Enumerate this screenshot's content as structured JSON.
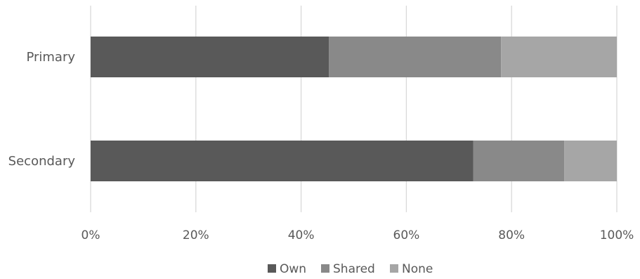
{
  "chart_data": {
    "type": "bar",
    "orientation": "horizontal",
    "stacked": true,
    "percent_stacked": true,
    "categories": [
      "Primary",
      "Secondary"
    ],
    "series": [
      {
        "name": "Own",
        "values": [
          45.3,
          72.7
        ],
        "color": "#595959"
      },
      {
        "name": "Shared",
        "values": [
          32.7,
          17.3
        ],
        "color": "#898989"
      },
      {
        "name": "None",
        "values": [
          22.0,
          10.0
        ],
        "color": "#a6a6a6"
      }
    ],
    "x_ticks": [
      "0%",
      "20%",
      "40%",
      "60%",
      "80%",
      "100%"
    ],
    "xlim": [
      0,
      100
    ],
    "grid": true,
    "legend_position": "bottom"
  }
}
